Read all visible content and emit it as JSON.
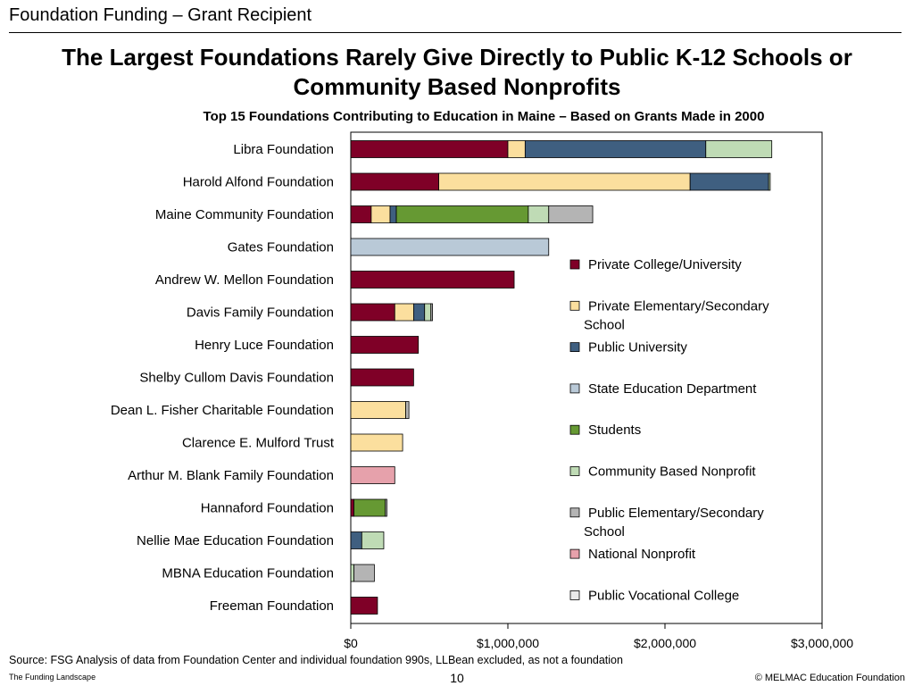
{
  "header": {
    "label": "Foundation Funding – Grant Recipient"
  },
  "title": "The Largest Foundations Rarely Give Directly to Public K-12 Schools or Community Based Nonprofits",
  "chart_data": {
    "type": "bar",
    "orientation": "horizontal",
    "stacked": true,
    "title": "Top 15 Foundations Contributing to Education in Maine – Based on Grants Made in 2000",
    "xlabel": "",
    "ylabel": "",
    "xlim": [
      0,
      3000000
    ],
    "xticks": [
      {
        "value": 0,
        "label": "$0"
      },
      {
        "value": 1000000,
        "label": "$1,000,000"
      },
      {
        "value": 2000000,
        "label": "$2,000,000"
      },
      {
        "value": 3000000,
        "label": "$3,000,000"
      }
    ],
    "grid": false,
    "legend_position": "right",
    "categories": [
      "Libra Foundation",
      "Harold Alfond Foundation",
      "Maine Community Foundation",
      "Gates Foundation",
      "Andrew W. Mellon Foundation",
      "Davis Family Foundation",
      "Henry Luce Foundation",
      "Shelby Cullom Davis Foundation",
      "Dean L. Fisher Charitable Foundation",
      "Clarence E. Mulford Trust",
      "Arthur M. Blank Family Foundation",
      "Hannaford Foundation",
      "Nellie Mae Education Foundation",
      "MBNA Education Foundation",
      "Freeman Foundation"
    ],
    "series": [
      {
        "name": "Private College/University",
        "color": "#7f0027",
        "values": [
          1000000,
          560000,
          130000,
          0,
          1040000,
          280000,
          430000,
          400000,
          0,
          0,
          0,
          20000,
          0,
          0,
          170000
        ]
      },
      {
        "name": "Private Elementary/Secondary School",
        "color": "#fbdf9e",
        "values": [
          110000,
          1600000,
          120000,
          0,
          0,
          120000,
          0,
          0,
          350000,
          330000,
          0,
          0,
          0,
          0,
          0
        ]
      },
      {
        "name": "Public University",
        "color": "#3f5f80",
        "values": [
          1150000,
          500000,
          40000,
          0,
          0,
          70000,
          0,
          0,
          0,
          0,
          0,
          0,
          70000,
          0,
          0
        ]
      },
      {
        "name": "State Education Department",
        "color": "#b9c9d7",
        "values": [
          0,
          0,
          0,
          1260000,
          0,
          0,
          0,
          0,
          0,
          0,
          0,
          0,
          0,
          0,
          0
        ]
      },
      {
        "name": "Students",
        "color": "#669933",
        "values": [
          0,
          0,
          840000,
          0,
          0,
          0,
          0,
          0,
          0,
          0,
          0,
          200000,
          0,
          0,
          0
        ]
      },
      {
        "name": "Community Based Nonprofit",
        "color": "#bfdbb5",
        "values": [
          420000,
          10000,
          130000,
          0,
          0,
          40000,
          0,
          0,
          0,
          0,
          0,
          0,
          140000,
          20000,
          0
        ]
      },
      {
        "name": "Public Elementary/Secondary School",
        "color": "#b4b4b4",
        "values": [
          0,
          0,
          280000,
          0,
          0,
          10000,
          0,
          0,
          20000,
          0,
          0,
          10000,
          0,
          130000,
          0
        ]
      },
      {
        "name": "National Nonprofit",
        "color": "#e6a1ab",
        "values": [
          0,
          0,
          0,
          0,
          0,
          0,
          0,
          0,
          0,
          0,
          280000,
          0,
          0,
          0,
          0
        ]
      },
      {
        "name": "Public Vocational College",
        "color": "#e9e9e9",
        "values": [
          0,
          0,
          0,
          0,
          0,
          0,
          0,
          0,
          0,
          0,
          0,
          0,
          0,
          0,
          0
        ]
      }
    ]
  },
  "source": "Source:  FSG Analysis of data from Foundation Center and individual foundation 990s, LLBean excluded, as not a foundation",
  "footer": {
    "left": "The Funding Landscape",
    "page_number": "10",
    "copyright": "© MELMAC Education Foundation"
  }
}
